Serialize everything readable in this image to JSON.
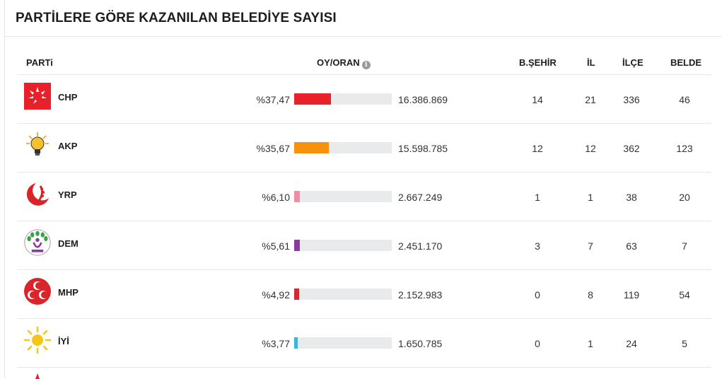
{
  "title": "PARTİLERE GÖRE KAZANILAN BELEDİYE SAYISI",
  "headers": {
    "party": "PARTi",
    "vote": "OY/ORAN",
    "info": "i",
    "bsehir": "B.ŞEHİR",
    "il": "İL",
    "ilce": "İLÇE",
    "belde": "BELDE"
  },
  "parties": [
    {
      "name": "CHP",
      "pct": "%37,47",
      "share": 37.47,
      "votes": "16.386.869",
      "bsehir": "14",
      "il": "21",
      "ilce": "336",
      "belde": "46",
      "color": "#e8202a",
      "logo": "chp-logo"
    },
    {
      "name": "AKP",
      "pct": "%35,67",
      "share": 35.67,
      "votes": "15.598.785",
      "bsehir": "12",
      "il": "12",
      "ilce": "362",
      "belde": "123",
      "color": "#f7920c",
      "logo": "akp-logo"
    },
    {
      "name": "YRP",
      "pct": "%6,10",
      "share": 6.1,
      "votes": "2.667.249",
      "bsehir": "1",
      "il": "1",
      "ilce": "38",
      "belde": "20",
      "color": "#f08ca4",
      "logo": "yrp-logo"
    },
    {
      "name": "DEM",
      "pct": "%5,61",
      "share": 5.61,
      "votes": "2.451.170",
      "bsehir": "3",
      "il": "7",
      "ilce": "63",
      "belde": "7",
      "color": "#8b3aa0",
      "logo": "dem-logo"
    },
    {
      "name": "MHP",
      "pct": "%4,92",
      "share": 4.92,
      "votes": "2.152.983",
      "bsehir": "0",
      "il": "8",
      "ilce": "119",
      "belde": "54",
      "color": "#cf2a34",
      "logo": "mhp-logo"
    },
    {
      "name": "İYİ",
      "pct": "%3,77",
      "share": 3.77,
      "votes": "1.650.785",
      "bsehir": "0",
      "il": "1",
      "ilce": "24",
      "belde": "5",
      "color": "#3bb3df",
      "logo": "iyi-logo"
    }
  ]
}
